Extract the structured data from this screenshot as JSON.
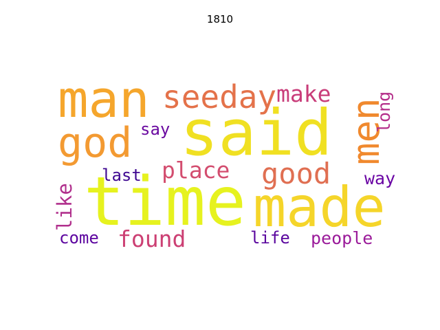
{
  "title": "1810",
  "words": [
    {
      "key": "time",
      "text": "time",
      "color": "#e6f21f"
    },
    {
      "key": "said",
      "text": "said",
      "color": "#f0e022"
    },
    {
      "key": "made",
      "text": "made",
      "color": "#f5d52a"
    },
    {
      "key": "man",
      "text": "man",
      "color": "#f5a62c"
    },
    {
      "key": "god",
      "text": "god",
      "color": "#f39a32"
    },
    {
      "key": "men",
      "text": "men",
      "color": "#f0892e"
    },
    {
      "key": "seeday",
      "text": "seeday",
      "color": "#e4724a"
    },
    {
      "key": "good",
      "text": "good",
      "color": "#e06f52"
    },
    {
      "key": "make",
      "text": "make",
      "color": "#c93d7a"
    },
    {
      "key": "place",
      "text": "place",
      "color": "#d34d6f"
    },
    {
      "key": "found",
      "text": "found",
      "color": "#cc3f73"
    },
    {
      "key": "long",
      "text": "long",
      "color": "#b42e8a"
    },
    {
      "key": "like",
      "text": "like",
      "color": "#b02f8c"
    },
    {
      "key": "people",
      "text": "people",
      "color": "#9b1b9a"
    },
    {
      "key": "say",
      "text": "say",
      "color": "#6a0aa0"
    },
    {
      "key": "last",
      "text": "last",
      "color": "#3f0891"
    },
    {
      "key": "way",
      "text": "way",
      "color": "#6a05a4"
    },
    {
      "key": "come",
      "text": "come",
      "color": "#5c059f"
    },
    {
      "key": "life",
      "text": "life",
      "color": "#5a069e"
    }
  ]
}
